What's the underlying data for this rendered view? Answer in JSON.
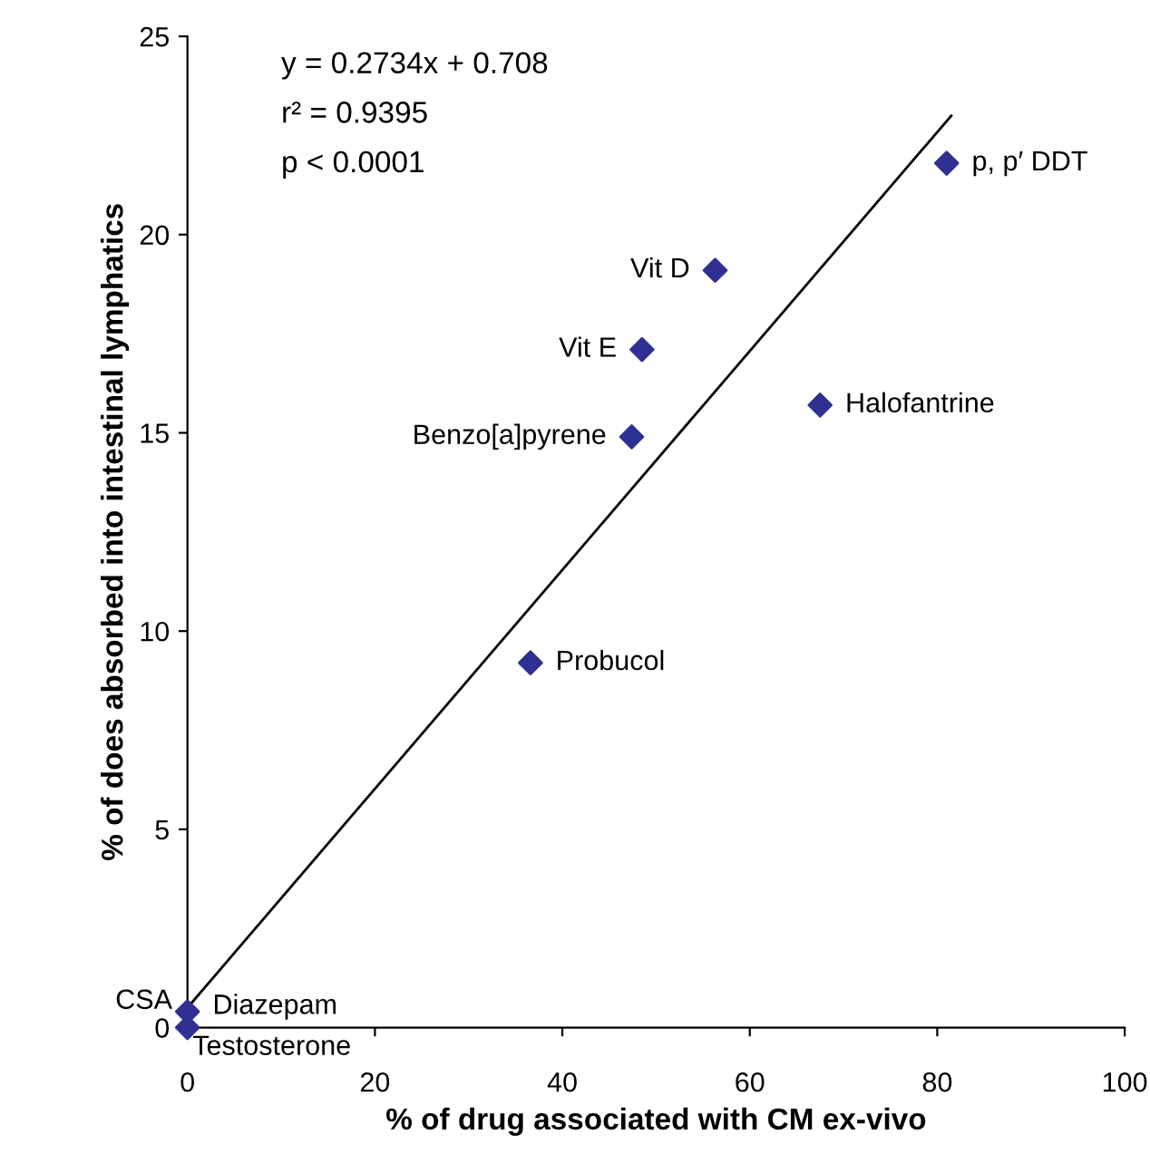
{
  "chart_data": {
    "type": "scatter",
    "xlabel": "% of drug associated with CM ex-vivo",
    "ylabel": "% of does absorbed into intestinal lymphatics",
    "xlim": [
      0,
      100
    ],
    "xticks": [
      0,
      20,
      40,
      60,
      80,
      100
    ],
    "ylim": [
      0,
      25
    ],
    "yticks": [
      0,
      5,
      10,
      15,
      20,
      25
    ],
    "grid": false,
    "series": [
      {
        "marker": "diamond",
        "color": "#2e3192",
        "x": [
          81,
          56.3,
          48.5,
          47.4,
          67.5,
          36.6,
          0,
          0
        ],
        "values": [
          21.8,
          19.1,
          17.1,
          14.9,
          15.7,
          9.2,
          0.4,
          0
        ]
      },
      {
        "type": "line",
        "marker": "none",
        "color": "#000000",
        "x": [
          0,
          81.5
        ],
        "values": [
          0.5,
          23
        ]
      }
    ],
    "annotations": [
      "y = 0.2734x + 0.708",
      "r² = 0.9395",
      "p < 0.0001",
      {
        "text": "p, p′ DDT",
        "x": 81,
        "y": 21.8
      },
      {
        "text": "Vit D",
        "x": 56.3,
        "y": 19.1
      },
      {
        "text": "Vit E",
        "x": 48.5,
        "y": 17.1
      },
      {
        "text": "Benzo[a]pyrene",
        "x": 47.4,
        "y": 14.9
      },
      {
        "text": "Halofantrine",
        "x": 67.5,
        "y": 15.7
      },
      {
        "text": "Probucol",
        "x": 36.6,
        "y": 9.2
      },
      {
        "text": "CSA",
        "x": 0,
        "y": 0.4
      },
      {
        "text": "Diazepam",
        "x": 0,
        "y": 0.4
      },
      {
        "text": "Testosterone",
        "x": 0,
        "y": 0
      }
    ]
  }
}
